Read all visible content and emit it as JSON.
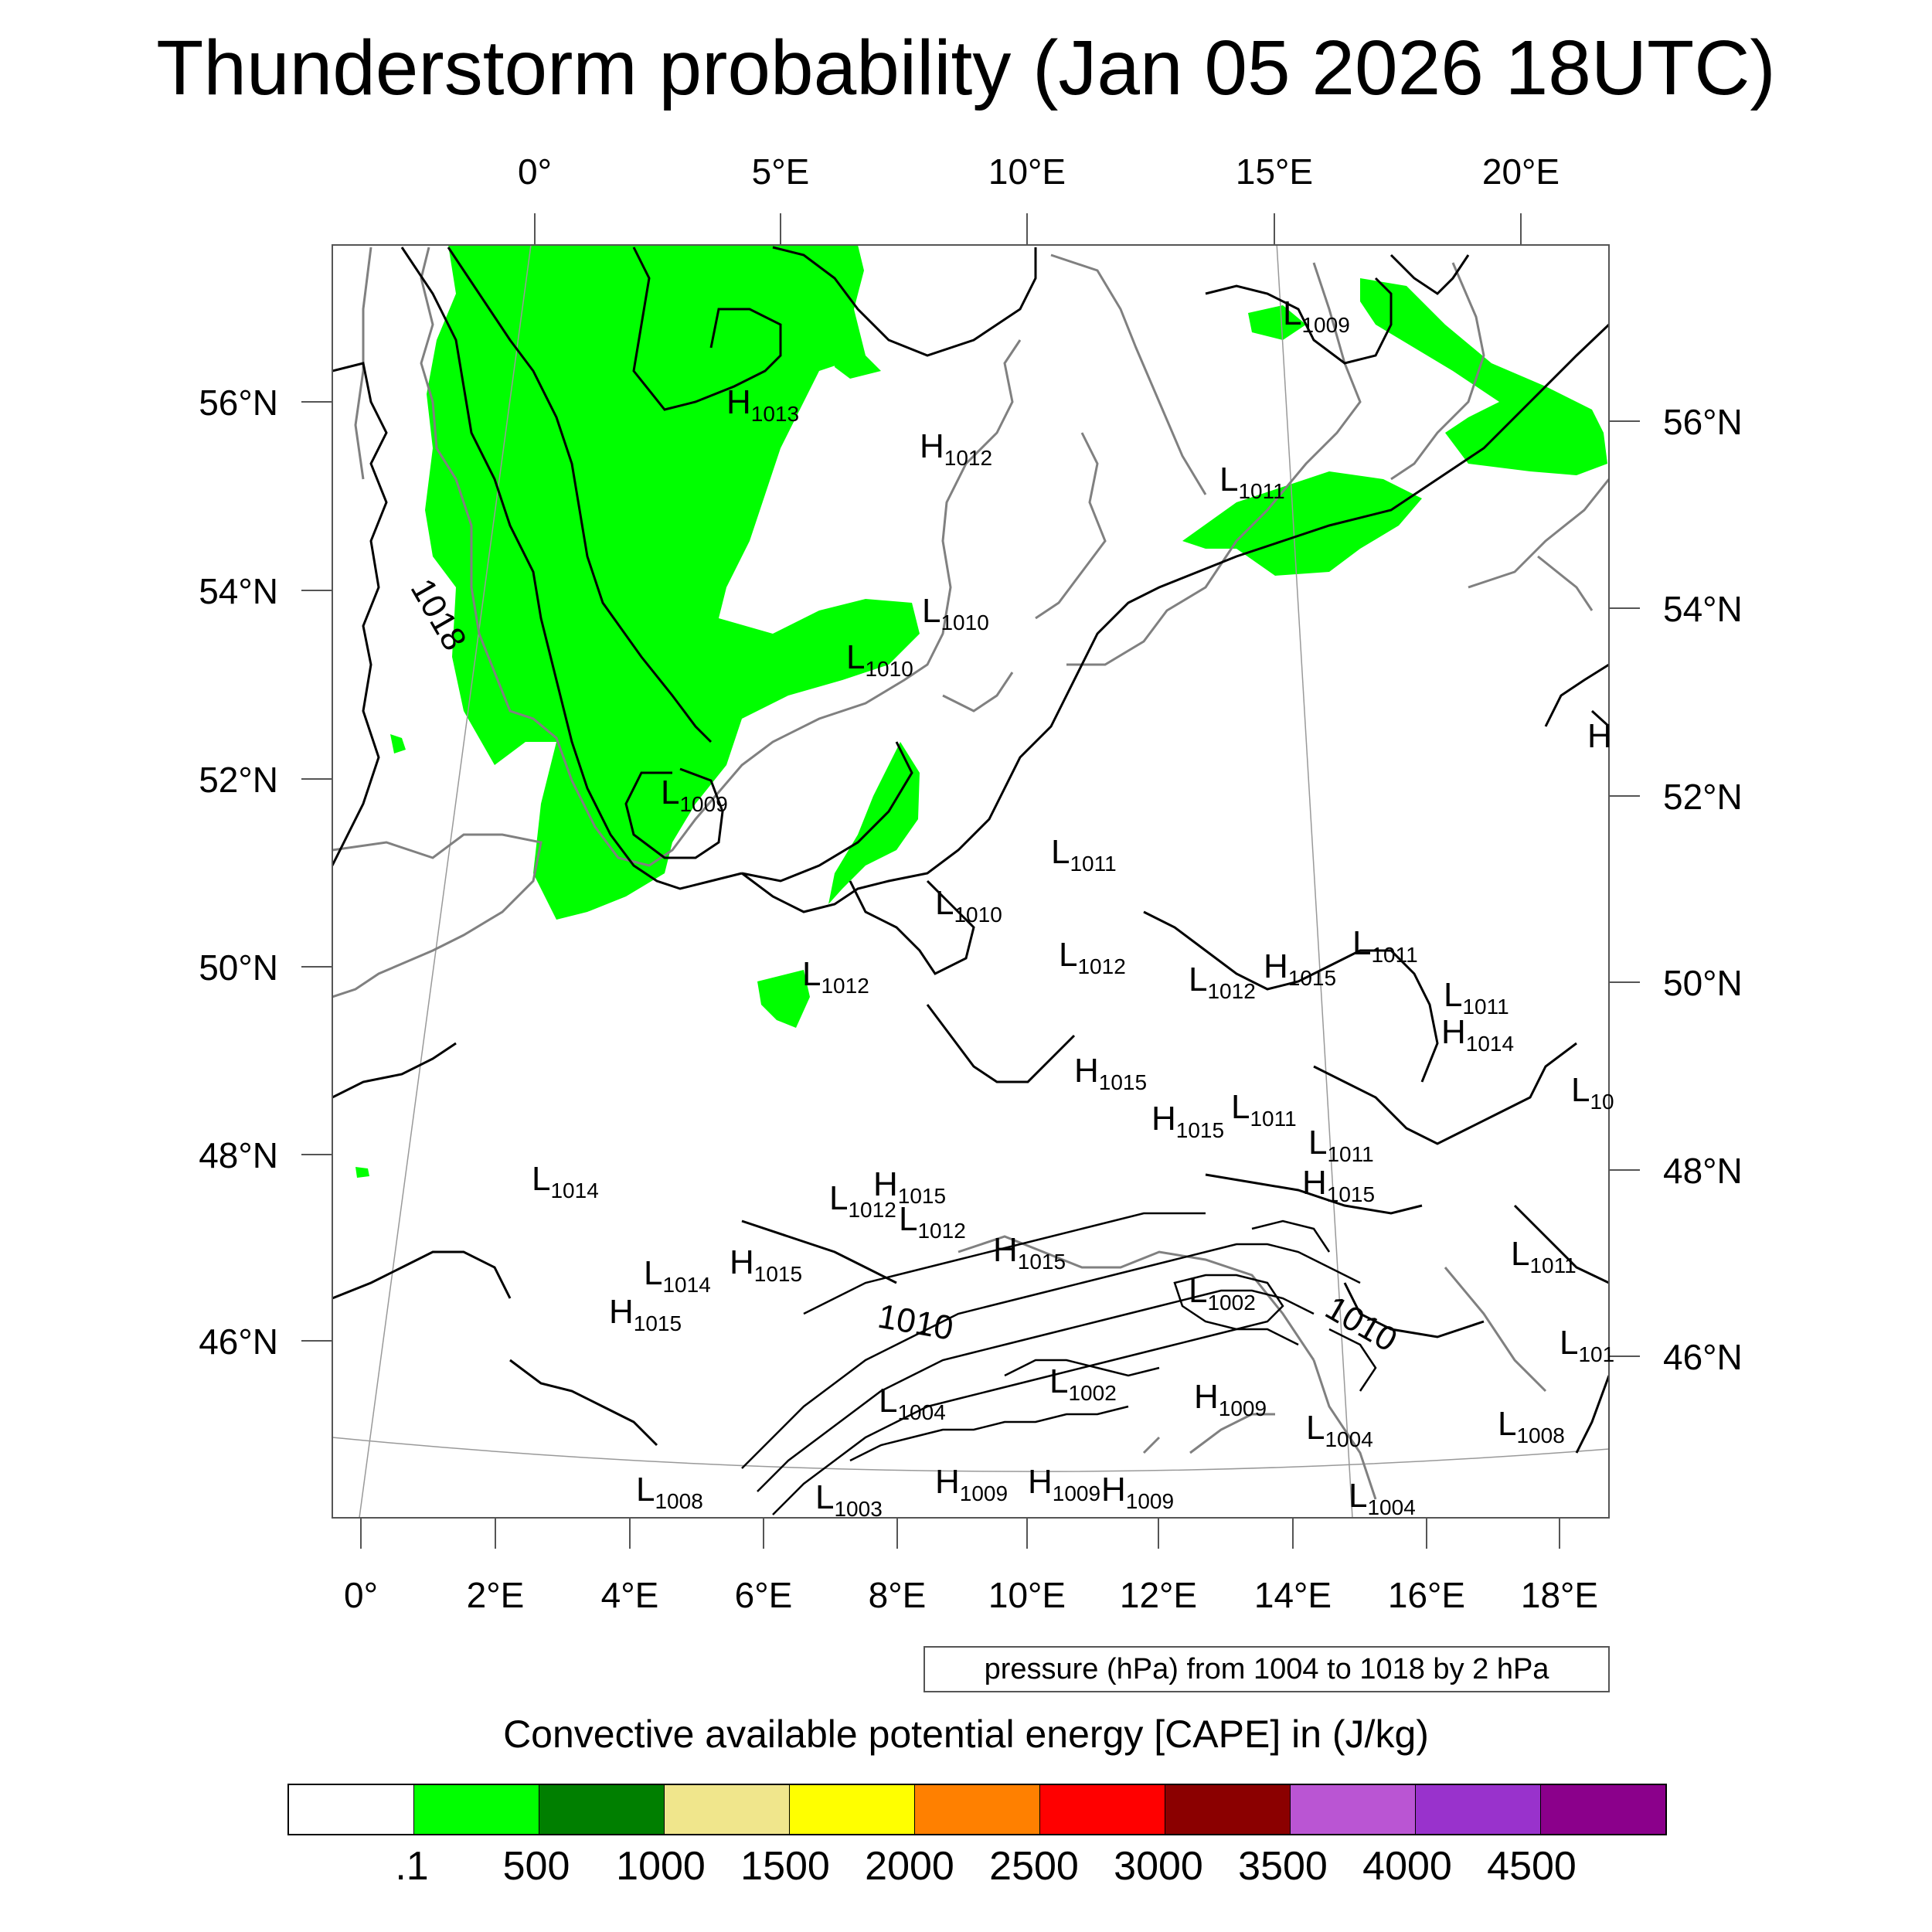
{
  "title": "Thunderstorm probability (Jan 05 2026 18UTC)",
  "map": {
    "top_lon_labels": [
      "0°",
      "5°E",
      "10°E",
      "15°E",
      "20°E"
    ],
    "bottom_lon_labels": [
      "0°",
      "2°E",
      "4°E",
      "6°E",
      "8°E",
      "10°E",
      "12°E",
      "14°E",
      "16°E",
      "18°E"
    ],
    "left_lat_labels": [
      "56°N",
      "54°N",
      "52°N",
      "50°N",
      "48°N",
      "46°N"
    ],
    "right_lat_labels": [
      "56°N",
      "54°N",
      "52°N",
      "50°N",
      "48°N",
      "46°N"
    ],
    "contour_labels": [
      "1018",
      "1010",
      "1010"
    ],
    "pressure_centers": [
      {
        "type": "H",
        "value": "1013"
      },
      {
        "type": "H",
        "value": "1012"
      },
      {
        "type": "L",
        "value": "1009"
      },
      {
        "type": "L",
        "value": "1011"
      },
      {
        "type": "L",
        "value": "1010"
      },
      {
        "type": "L",
        "value": "1010"
      },
      {
        "type": "L",
        "value": "1009"
      },
      {
        "type": "L",
        "value": "1011"
      },
      {
        "type": "L",
        "value": "1010"
      },
      {
        "type": "L",
        "value": "1012"
      },
      {
        "type": "L",
        "value": "1012"
      },
      {
        "type": "L",
        "value": "1012"
      },
      {
        "type": "H",
        "value": "1015"
      },
      {
        "type": "L",
        "value": "1011"
      },
      {
        "type": "L",
        "value": "1011"
      },
      {
        "type": "H",
        "value": "1014"
      },
      {
        "type": "H",
        "value": "1015"
      },
      {
        "type": "H",
        "value": "1015"
      },
      {
        "type": "L",
        "value": "1011"
      },
      {
        "type": "L",
        "value": "1011"
      },
      {
        "type": "H",
        "value": "1015"
      },
      {
        "type": "L",
        "value": "1014"
      },
      {
        "type": "H",
        "value": "1015"
      },
      {
        "type": "L",
        "value": "1012"
      },
      {
        "type": "L",
        "value": "1012"
      },
      {
        "type": "H",
        "value": "1015"
      },
      {
        "type": "L",
        "value": "1014"
      },
      {
        "type": "H",
        "value": "1015"
      },
      {
        "type": "H",
        "value": "1015"
      },
      {
        "type": "L",
        "value": "1002"
      },
      {
        "type": "L",
        "value": "1011"
      },
      {
        "type": "L",
        "value": "1002"
      },
      {
        "type": "L",
        "value": "1004"
      },
      {
        "type": "H",
        "value": "1009"
      },
      {
        "type": "L",
        "value": "1004"
      },
      {
        "type": "L",
        "value": "1008"
      },
      {
        "type": "L",
        "value": "1008"
      },
      {
        "type": "L",
        "value": "1003"
      },
      {
        "type": "H",
        "value": "1009"
      },
      {
        "type": "H",
        "value": "1009"
      },
      {
        "type": "H",
        "value": "1009"
      },
      {
        "type": "L",
        "value": "1004"
      },
      {
        "type": "H",
        "value": ""
      },
      {
        "type": "L",
        "value": "10"
      },
      {
        "type": "L",
        "value": "101"
      }
    ]
  },
  "contour_legend": "pressure (hPa) from 1004 to 1018 by 2 hPa",
  "colorbar": {
    "title": "Convective available potential energy [CAPE] in (J/kg)",
    "colors": [
      "#ffffff",
      "#00ff00",
      "#007f00",
      "#f0e68c",
      "#ffff00",
      "#ff8000",
      "#ff0000",
      "#8b0000",
      "#ba55d3",
      "#9932cc",
      "#8b008b"
    ],
    "labels": [
      ".1",
      "500",
      "1000",
      "1500",
      "2000",
      "2500",
      "3000",
      "3500",
      "4000",
      "4500"
    ]
  }
}
